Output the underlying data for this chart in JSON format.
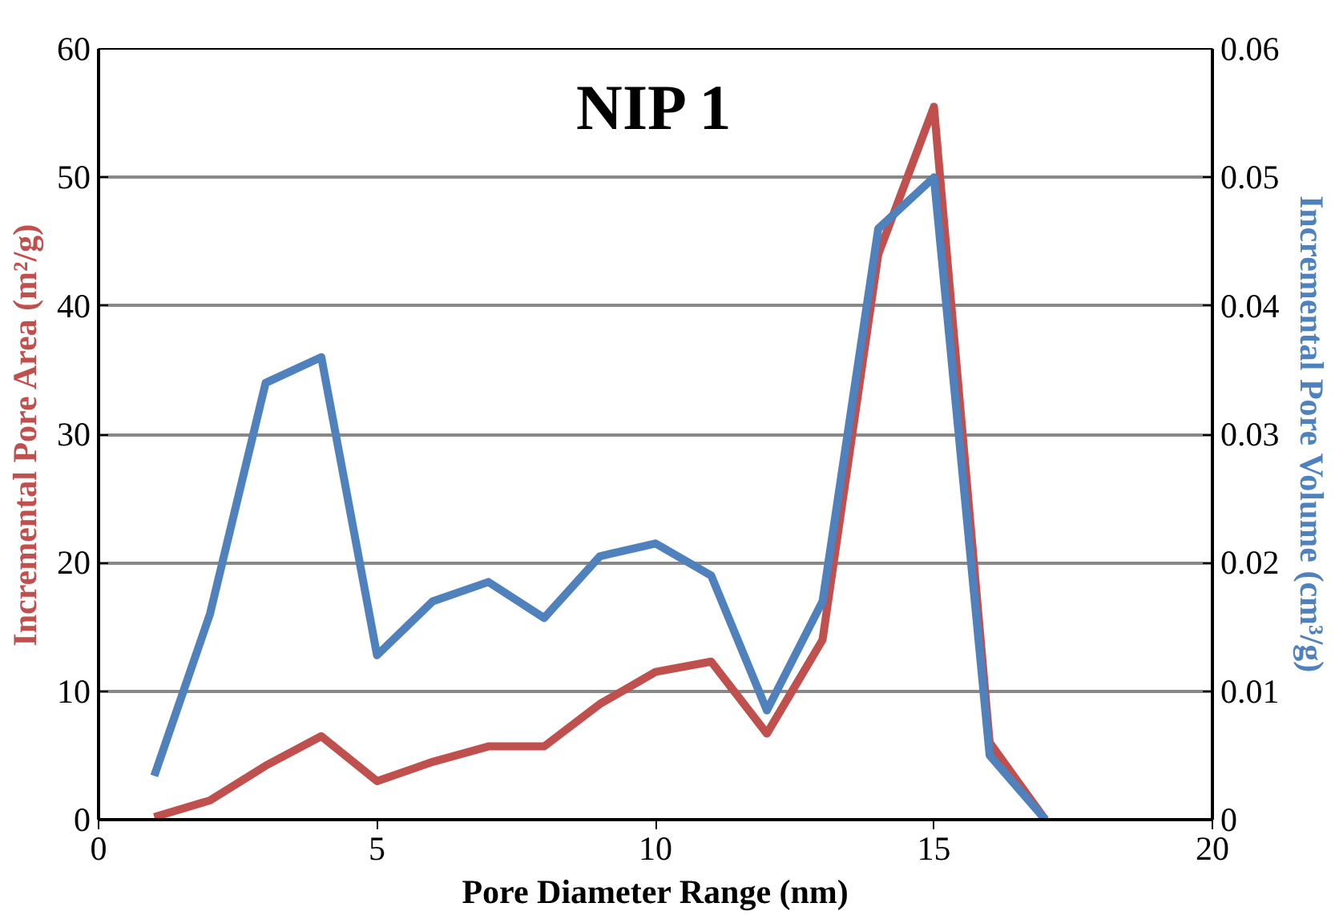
{
  "chart_data": {
    "type": "line",
    "title": "NIP 1",
    "xlabel": "Pore Diameter Range (nm)",
    "ylabel": "Incremental Pore Area (m²/g)",
    "y2label": "Incremental Pore Volume (cm³/g)",
    "x": [
      1,
      2,
      3,
      4,
      5,
      6,
      7,
      8,
      9,
      10,
      11,
      12,
      13,
      14,
      15,
      16,
      17
    ],
    "series": [
      {
        "color": "#c0504d",
        "values": [
          0.2,
          1.5,
          4.2,
          6.5,
          3,
          4.5,
          5.7,
          5.7,
          9,
          11.5,
          12.3,
          6.7,
          14,
          44,
          55.5,
          6,
          0
        ]
      },
      {
        "color": "#4f81bd",
        "axis": "y2",
        "values": [
          0.0034,
          0.016,
          0.034,
          0.036,
          0.0128,
          0.017,
          0.0185,
          0.0157,
          0.0205,
          0.0215,
          0.019,
          0.0085,
          0.017,
          0.046,
          0.05,
          0.005,
          0
        ]
      }
    ],
    "xlim": [
      0,
      20
    ],
    "xticks": [
      0,
      5,
      10,
      15,
      20
    ],
    "ylim": [
      0,
      60
    ],
    "yticks": [
      0,
      10,
      20,
      30,
      40,
      50,
      60
    ],
    "y2lim": [
      0,
      0.06
    ],
    "y2ticks": [
      0,
      0.01,
      0.02,
      0.03,
      0.04,
      0.05,
      0.06
    ],
    "grid": "y",
    "marker": "none",
    "line_style": "solid"
  }
}
